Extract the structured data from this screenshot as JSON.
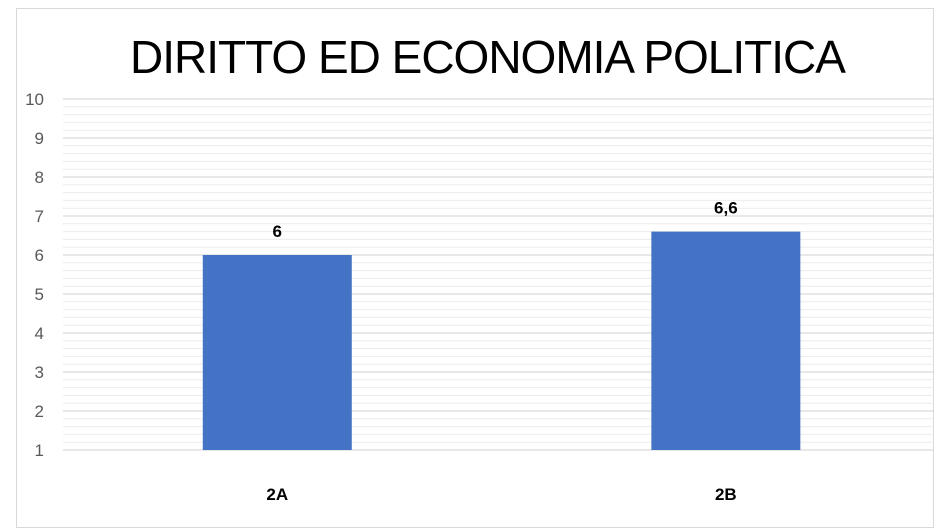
{
  "chart_data": {
    "type": "bar",
    "title": "DIRITTO ED ECONOMIA POLITICA",
    "categories": [
      "2A",
      "2B"
    ],
    "values": [
      6,
      6.6
    ],
    "data_labels": [
      "6",
      "6,6"
    ],
    "ylim": [
      1,
      10
    ],
    "y_ticks": [
      1,
      2,
      3,
      4,
      5,
      6,
      7,
      8,
      9,
      10
    ],
    "grid": true,
    "bar_color": "#4472C4",
    "grid_color": "#d9d9d9",
    "xlabel": "",
    "ylabel": ""
  }
}
